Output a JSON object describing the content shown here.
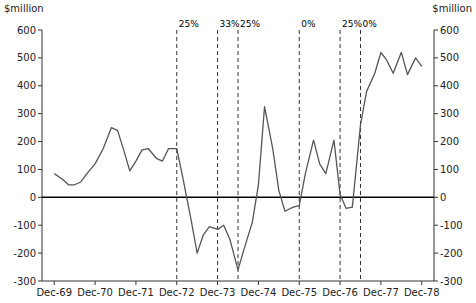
{
  "chart_data": {
    "type": "line",
    "ylabel": "$million",
    "y2label": "$million",
    "x": [
      0.0,
      0.2,
      0.35,
      0.5,
      0.65,
      0.8,
      1.0,
      1.2,
      1.4,
      1.55,
      1.7,
      1.85,
      2.0,
      2.15,
      2.3,
      2.5,
      2.65,
      2.8,
      3.0,
      3.15,
      3.35,
      3.5,
      3.65,
      3.8,
      4.0,
      4.15,
      4.3,
      4.5,
      4.65,
      4.85,
      5.0,
      5.15,
      5.35,
      5.5,
      5.65,
      5.85,
      6.0,
      6.15,
      6.35,
      6.5,
      6.65,
      6.85,
      7.0,
      7.15,
      7.3,
      7.5,
      7.65,
      7.85,
      8.0,
      8.15,
      8.3,
      8.5,
      8.65,
      8.85,
      9.0
    ],
    "values": [
      85,
      65,
      45,
      45,
      55,
      85,
      120,
      175,
      250,
      240,
      170,
      95,
      130,
      170,
      175,
      140,
      130,
      175,
      175,
      70,
      -80,
      -200,
      -135,
      -105,
      -115,
      -100,
      -150,
      -260,
      -185,
      -90,
      45,
      325,
      175,
      25,
      -50,
      -35,
      -30,
      85,
      205,
      120,
      85,
      205,
      10,
      -40,
      -35,
      260,
      380,
      445,
      520,
      490,
      445,
      520,
      440,
      500,
      470
    ],
    "color": "#555555",
    "xlim": [
      -0.3,
      9.3
    ],
    "xticks": [
      {
        "value": 0,
        "label": "Dec-69"
      },
      {
        "value": 1,
        "label": "Dec-70"
      },
      {
        "value": 2,
        "label": "Dec-71"
      },
      {
        "value": 3,
        "label": "Dec-72"
      },
      {
        "value": 4,
        "label": "Dec-73"
      },
      {
        "value": 5,
        "label": "Dec-74"
      },
      {
        "value": 6,
        "label": "Dec-75"
      },
      {
        "value": 7,
        "label": "Dec-76"
      },
      {
        "value": 8,
        "label": "Dec-77"
      },
      {
        "value": 9,
        "label": "Dec-78"
      }
    ],
    "ylim": [
      -300,
      600
    ],
    "yticks": [
      -300,
      -200,
      -100,
      0,
      100,
      200,
      300,
      400,
      500,
      600
    ],
    "y2lim": [
      -300,
      600
    ],
    "y2ticks": [
      -300,
      -200,
      -100,
      0,
      100,
      200,
      300,
      400,
      500,
      600
    ],
    "hline": 0,
    "annotations": [
      {
        "x": 3.0,
        "label": "25%"
      },
      {
        "x": 4.0,
        "label": "33%"
      },
      {
        "x": 4.5,
        "label": "25%"
      },
      {
        "x": 6.0,
        "label": "0%"
      },
      {
        "x": 7.0,
        "label": "25%"
      },
      {
        "x": 7.5,
        "label": "0%"
      }
    ],
    "grid": false
  }
}
